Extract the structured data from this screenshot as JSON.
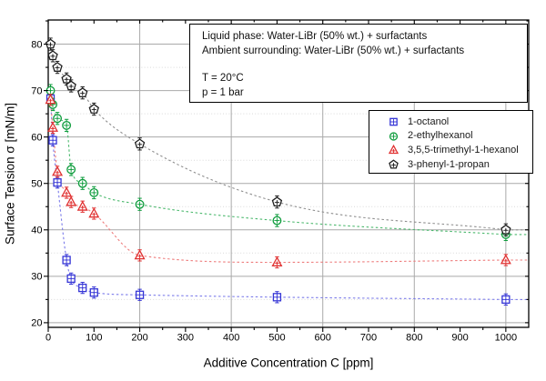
{
  "chart_data": {
    "type": "scatter",
    "title": "",
    "xlabel": "Additive Concentration C [ppm]",
    "ylabel": "Surface Tension σ [mN/m]",
    "xlim": [
      0,
      1050
    ],
    "ylim": [
      19,
      85.2
    ],
    "x_major_ticks": [
      0,
      100,
      200,
      300,
      400,
      500,
      600,
      700,
      800,
      900,
      1000
    ],
    "x_minor_step": 50,
    "y_major_ticks": [
      20,
      30,
      40,
      50,
      60,
      70,
      80
    ],
    "y_minor_step": 5,
    "x_gridlines_solid": [
      200,
      400,
      600,
      800,
      1000
    ],
    "y_gridlines_solid": [
      20,
      30,
      40,
      50,
      60,
      70,
      80
    ],
    "y_gridlines_dotted": [
      25,
      35,
      45,
      55,
      65,
      75
    ],
    "grid_color": "#a9a9a9",
    "grid_dotted_color": "#d9d9d9",
    "series": [
      {
        "name": "1-octanol",
        "marker": "square",
        "color": "#3535d6",
        "line_color": "#7c7cea",
        "err": 1.2,
        "points": [
          [
            5,
            68.3
          ],
          [
            10,
            59.3
          ],
          [
            20,
            50.2
          ],
          [
            40,
            33.5
          ],
          [
            50,
            29.5
          ],
          [
            75,
            27.5
          ],
          [
            100,
            26.5
          ],
          [
            200,
            26.0
          ],
          [
            500,
            25.5
          ],
          [
            1000,
            25.0
          ]
        ]
      },
      {
        "name": "2-ethylhexanol",
        "marker": "circle",
        "color": "#0d9c3c",
        "line_color": "#4cb96e",
        "err": 1.3,
        "points": [
          [
            5,
            70.0
          ],
          [
            10,
            67.0
          ],
          [
            20,
            64.0
          ],
          [
            40,
            62.5
          ],
          [
            50,
            53.0
          ],
          [
            75,
            50.0
          ],
          [
            100,
            48.0
          ],
          [
            200,
            45.5
          ],
          [
            500,
            42.0
          ],
          [
            1000,
            39.0
          ]
        ]
      },
      {
        "name": "3,5,5-trimethyl-1-hexanol",
        "marker": "triangle",
        "color": "#e03030",
        "line_color": "#ee7c7c",
        "err": 1.2,
        "points": [
          [
            5,
            68.0
          ],
          [
            10,
            62.0
          ],
          [
            20,
            52.5
          ],
          [
            40,
            48.0
          ],
          [
            50,
            46.0
          ],
          [
            75,
            45.0
          ],
          [
            100,
            43.5
          ],
          [
            200,
            34.5
          ],
          [
            500,
            33.0
          ],
          [
            1000,
            33.5
          ]
        ]
      },
      {
        "name": "3-phenyl-1-propan",
        "marker": "pentagon",
        "color": "#1f1f1f",
        "line_color": "#8f8f8f",
        "err": 1.3,
        "points": [
          [
            5,
            80.0
          ],
          [
            10,
            77.5
          ],
          [
            20,
            75.0
          ],
          [
            40,
            72.5
          ],
          [
            50,
            71.0
          ],
          [
            75,
            69.5
          ],
          [
            100,
            66.0
          ],
          [
            200,
            58.5
          ],
          [
            500,
            46.0
          ],
          [
            1000,
            40.0
          ]
        ]
      }
    ],
    "legend": {
      "position": "upper-right",
      "items": [
        "1-octanol",
        "2-ethylhexanol",
        "3,5,5-trimethyl-1-hexanol",
        "3-phenyl-1-propan"
      ]
    },
    "annotation": {
      "line1": "Liquid phase: Water-LiBr (50% wt.) + surfactants",
      "line2": "Ambient surrounding: Water-LiBr (50% wt.) + surfactants",
      "line3": "T = 20°C",
      "line4": "p = 1 bar"
    }
  }
}
